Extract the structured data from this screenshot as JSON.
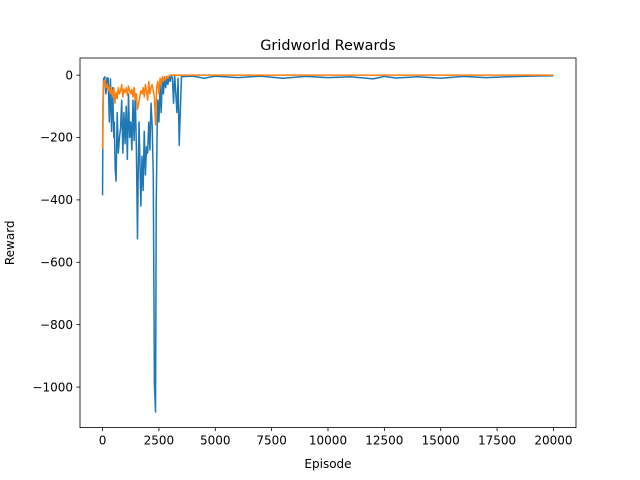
{
  "chart_data": {
    "type": "line",
    "title": "Gridworld Rewards",
    "xlabel": "Episode",
    "ylabel": "Reward",
    "xlim": [
      -1000,
      21000
    ],
    "ylim": [
      -1130,
      55
    ],
    "xticks": [
      0,
      2500,
      5000,
      7500,
      10000,
      12500,
      15000,
      17500,
      20000
    ],
    "yticks": [
      0,
      -200,
      -400,
      -600,
      -800,
      -1000
    ],
    "xtick_labels": [
      "0",
      "2500",
      "5000",
      "7500",
      "10000",
      "12500",
      "15000",
      "17500",
      "20000"
    ],
    "ytick_labels": [
      "0",
      "−200",
      "−400",
      "−600",
      "−800",
      "−1000"
    ],
    "grid": false,
    "series": [
      {
        "color": "#1f77b4",
        "x": [
          0,
          20,
          50,
          80,
          100,
          150,
          200,
          250,
          300,
          350,
          400,
          450,
          500,
          520,
          560,
          600,
          650,
          700,
          750,
          800,
          850,
          900,
          950,
          1000,
          1050,
          1100,
          1150,
          1200,
          1250,
          1300,
          1350,
          1400,
          1450,
          1500,
          1550,
          1580,
          1620,
          1700,
          1750,
          1800,
          1850,
          1900,
          1950,
          2000,
          2050,
          2100,
          2150,
          2200,
          2250,
          2300,
          2350,
          2380,
          2420,
          2450,
          2500,
          2550,
          2600,
          2650,
          2700,
          2750,
          2800,
          2850,
          2900,
          2950,
          3000,
          3050,
          3100,
          3150,
          3200,
          3300,
          3350,
          3400,
          3500,
          4000,
          4500,
          5000,
          6000,
          7000,
          8000,
          9000,
          10000,
          11000,
          12000,
          12500,
          13000,
          14000,
          15000,
          16000,
          17000,
          18000,
          19000,
          20000
        ],
        "y": [
          -385,
          -90,
          -10,
          -20,
          -5,
          -60,
          -8,
          -10,
          -150,
          -12,
          -180,
          -40,
          -200,
          -150,
          -300,
          -340,
          -120,
          -250,
          -200,
          -170,
          -80,
          -250,
          -120,
          -220,
          -100,
          -270,
          -60,
          -200,
          -150,
          -240,
          -80,
          -210,
          -60,
          -230,
          -525,
          -320,
          -150,
          -420,
          -260,
          -370,
          -180,
          -320,
          -230,
          -250,
          -150,
          -240,
          -90,
          -160,
          -320,
          -990,
          -1080,
          -420,
          -180,
          -80,
          -150,
          -30,
          -120,
          -10,
          -60,
          -5,
          -40,
          -8,
          -30,
          -3,
          -20,
          0,
          -10,
          -90,
          0,
          -120,
          -10,
          -225,
          -5,
          -3,
          -10,
          -3,
          -8,
          -3,
          -10,
          -4,
          -8,
          -5,
          -12,
          -4,
          -9,
          -5,
          -10,
          -4,
          -8,
          -5,
          -3,
          -2
        ]
      },
      {
        "color": "#ff7f0e",
        "x": [
          0,
          30,
          60,
          100,
          150,
          200,
          250,
          300,
          350,
          400,
          450,
          500,
          550,
          600,
          650,
          700,
          750,
          800,
          850,
          900,
          950,
          1000,
          1050,
          1100,
          1150,
          1200,
          1250,
          1300,
          1350,
          1400,
          1450,
          1500,
          1550,
          1600,
          1650,
          1700,
          1750,
          1800,
          1850,
          1900,
          1950,
          2000,
          2050,
          2100,
          2150,
          2200,
          2250,
          2300,
          2350,
          2400,
          2450,
          2500,
          2550,
          2600,
          2650,
          2700,
          2750,
          2800,
          2850,
          2900,
          2950,
          3000,
          3100,
          3200,
          3300,
          3500,
          4000,
          5000,
          6000,
          8000,
          10000,
          12000,
          14000,
          16000,
          18000,
          20000
        ],
        "y": [
          -238,
          -80,
          -20,
          -15,
          -40,
          -30,
          -50,
          -35,
          -60,
          -45,
          -70,
          -40,
          -90,
          -55,
          -75,
          -40,
          -60,
          -50,
          -30,
          -70,
          -45,
          -55,
          -40,
          -65,
          -35,
          -50,
          -60,
          -45,
          -70,
          -40,
          -80,
          -60,
          -110,
          -90,
          -70,
          -50,
          -60,
          -40,
          -70,
          -30,
          -50,
          -80,
          -20,
          -60,
          -40,
          -30,
          -50,
          -70,
          -160,
          -40,
          -20,
          -60,
          -10,
          -30,
          -5,
          -20,
          -8,
          -15,
          -3,
          -10,
          -2,
          0,
          0,
          0,
          0,
          0,
          0,
          0,
          0,
          0,
          0,
          0,
          0,
          0,
          0,
          0
        ]
      }
    ]
  }
}
